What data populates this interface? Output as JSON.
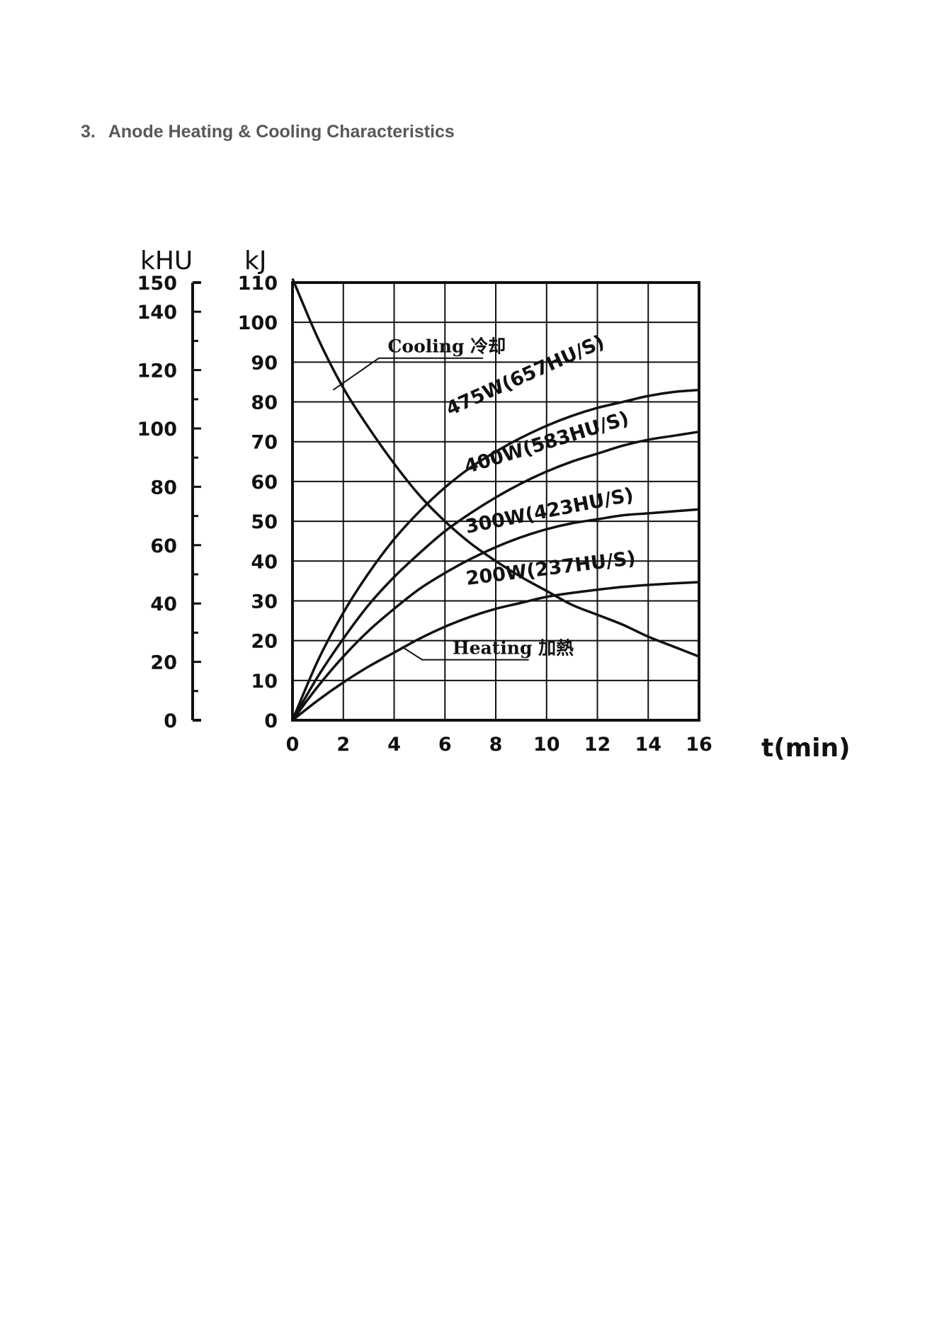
{
  "section": {
    "number": "3.",
    "title": "Anode Heating & Cooling Characteristics"
  },
  "chart_data": {
    "type": "line",
    "xlabel": "t(min)",
    "ylabel": "kJ",
    "ylabel_secondary": "kHU",
    "xlim": [
      0,
      16
    ],
    "ylim": [
      0,
      110
    ],
    "ylim_secondary": [
      0,
      150
    ],
    "x_ticks": [
      "0",
      "2",
      "4",
      "6",
      "8",
      "10",
      "12",
      "14",
      "16"
    ],
    "y_ticks": [
      "0",
      "10",
      "20",
      "30",
      "40",
      "50",
      "60",
      "70",
      "80",
      "90",
      "100",
      "110"
    ],
    "y_ticks_secondary": [
      "0",
      "20",
      "40",
      "60",
      "80",
      "100",
      "120",
      "140",
      "150"
    ],
    "grid": true,
    "x": [
      0,
      1,
      2,
      3,
      4,
      5,
      6,
      7,
      8,
      9,
      10,
      11,
      12,
      13,
      14,
      15,
      16
    ],
    "series": [
      {
        "name": "475W(657HU/S)",
        "values": [
          0,
          15,
          27,
          37,
          45.5,
          52.5,
          58.5,
          63.5,
          67.5,
          71,
          74,
          76.5,
          78.5,
          80,
          81.5,
          82.5,
          83
        ]
      },
      {
        "name": "400W(583HU/S)",
        "values": [
          0,
          11,
          20.5,
          29,
          36,
          42,
          47.5,
          52,
          56,
          59.5,
          62.5,
          65,
          67,
          69,
          70.5,
          71.5,
          72.5
        ]
      },
      {
        "name": "300W(423HU/S)",
        "values": [
          0,
          8.5,
          16,
          22.5,
          28,
          33,
          37,
          40.5,
          43.5,
          46,
          48,
          49.5,
          50.5,
          51.5,
          52,
          52.5,
          53
        ]
      },
      {
        "name": "200W(237HU/S)",
        "values": [
          0,
          5,
          9.5,
          13.5,
          17,
          20.5,
          23.5,
          26,
          28,
          29.5,
          31,
          32,
          32.8,
          33.5,
          34,
          34.4,
          34.7
        ]
      },
      {
        "name": "Cooling 冷却",
        "values": [
          111,
          96,
          83.5,
          73.5,
          64.5,
          56.5,
          50,
          44.5,
          40,
          36,
          32.5,
          29,
          26.5,
          24,
          21,
          18.5,
          16
        ]
      }
    ],
    "annotations": [
      {
        "text": "Cooling 冷却",
        "points_to": "Cooling 冷却"
      },
      {
        "text": "Heating 加熱",
        "points_to": "200W(237HU/S)"
      }
    ]
  }
}
